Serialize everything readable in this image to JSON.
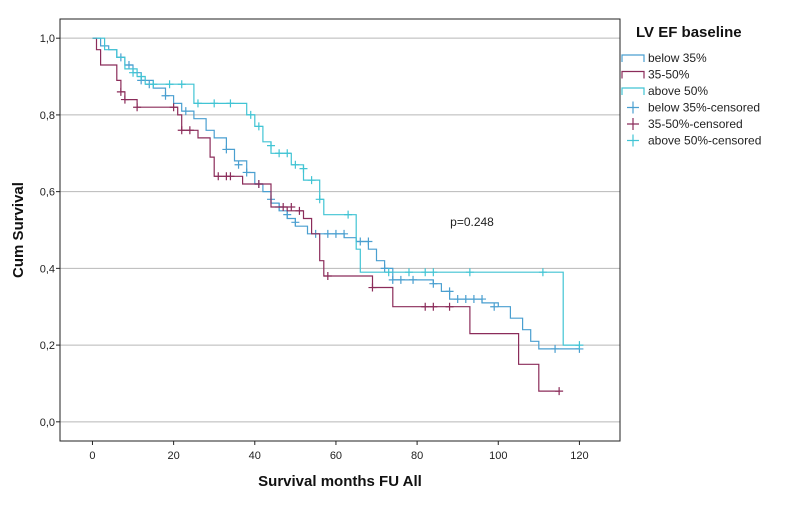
{
  "chart_data": {
    "type": "line",
    "xlabel": "Survival months FU All",
    "ylabel": "Cum Survival",
    "xlim": [
      -8,
      130
    ],
    "ylim": [
      -0.05,
      1.05
    ],
    "x_ticks": [
      0,
      20,
      40,
      60,
      80,
      100,
      120
    ],
    "y_ticks": [
      0.0,
      0.2,
      0.4,
      0.6,
      0.8,
      1.0
    ],
    "y_tick_labels": [
      "0,0",
      "0,2",
      "0,4",
      "0,6",
      "0,8",
      "1,0"
    ],
    "grid": "horizontal",
    "legend_title": "LV EF baseline",
    "legend_position": "right",
    "legend": [
      {
        "label": "below 35%",
        "color": "#4a9fd0",
        "marker": "line"
      },
      {
        "label": "35-50%",
        "color": "#8b2c5a",
        "marker": "line"
      },
      {
        "label": "above 50%",
        "color": "#41c4d4",
        "marker": "line"
      },
      {
        "label": "below 35%-censored",
        "color": "#4a9fd0",
        "marker": "plus"
      },
      {
        "label": "35-50%-censored",
        "color": "#8b2c5a",
        "marker": "plus"
      },
      {
        "label": "above 50%-censored",
        "color": "#41c4d4",
        "marker": "plus"
      }
    ],
    "annotation": "p=0.248",
    "series": [
      {
        "name": "below 35%",
        "color": "#4a9fd0",
        "steps": [
          [
            0,
            1.0
          ],
          [
            2,
            0.98
          ],
          [
            4,
            0.97
          ],
          [
            6,
            0.95
          ],
          [
            8,
            0.93
          ],
          [
            10,
            0.91
          ],
          [
            12,
            0.89
          ],
          [
            15,
            0.87
          ],
          [
            18,
            0.85
          ],
          [
            20,
            0.83
          ],
          [
            22,
            0.81
          ],
          [
            25,
            0.79
          ],
          [
            28,
            0.76
          ],
          [
            30,
            0.74
          ],
          [
            33,
            0.71
          ],
          [
            35,
            0.68
          ],
          [
            38,
            0.65
          ],
          [
            40,
            0.62
          ],
          [
            42,
            0.6
          ],
          [
            44,
            0.57
          ],
          [
            46,
            0.55
          ],
          [
            48,
            0.53
          ],
          [
            50,
            0.51
          ],
          [
            53,
            0.49
          ],
          [
            62,
            0.48
          ],
          [
            65,
            0.47
          ],
          [
            68,
            0.45
          ],
          [
            70,
            0.42
          ],
          [
            72,
            0.4
          ],
          [
            74,
            0.37
          ],
          [
            84,
            0.36
          ],
          [
            86,
            0.34
          ],
          [
            88,
            0.32
          ],
          [
            96,
            0.31
          ],
          [
            100,
            0.3
          ],
          [
            103,
            0.27
          ],
          [
            106,
            0.24
          ],
          [
            108,
            0.21
          ],
          [
            110,
            0.19
          ],
          [
            120,
            0.19
          ]
        ],
        "censored": [
          [
            7,
            0.95
          ],
          [
            9,
            0.93
          ],
          [
            12,
            0.89
          ],
          [
            14,
            0.88
          ],
          [
            18,
            0.85
          ],
          [
            23,
            0.81
          ],
          [
            33,
            0.71
          ],
          [
            36,
            0.67
          ],
          [
            38,
            0.65
          ],
          [
            41,
            0.62
          ],
          [
            44,
            0.58
          ],
          [
            46,
            0.56
          ],
          [
            48,
            0.54
          ],
          [
            50,
            0.52
          ],
          [
            55,
            0.49
          ],
          [
            58,
            0.49
          ],
          [
            60,
            0.49
          ],
          [
            62,
            0.49
          ],
          [
            66,
            0.47
          ],
          [
            68,
            0.47
          ],
          [
            72,
            0.4
          ],
          [
            74,
            0.37
          ],
          [
            76,
            0.37
          ],
          [
            79,
            0.37
          ],
          [
            84,
            0.36
          ],
          [
            88,
            0.34
          ],
          [
            90,
            0.32
          ],
          [
            92,
            0.32
          ],
          [
            94,
            0.32
          ],
          [
            96,
            0.32
          ],
          [
            99,
            0.3
          ],
          [
            114,
            0.19
          ],
          [
            120,
            0.19
          ]
        ]
      },
      {
        "name": "35-50%",
        "color": "#8b2c5a",
        "steps": [
          [
            0,
            1.0
          ],
          [
            1,
            0.97
          ],
          [
            2,
            0.93
          ],
          [
            6,
            0.89
          ],
          [
            7,
            0.86
          ],
          [
            8,
            0.84
          ],
          [
            11,
            0.82
          ],
          [
            21,
            0.8
          ],
          [
            22,
            0.76
          ],
          [
            26,
            0.74
          ],
          [
            29,
            0.69
          ],
          [
            30,
            0.64
          ],
          [
            37,
            0.62
          ],
          [
            44,
            0.56
          ],
          [
            48,
            0.55
          ],
          [
            52,
            0.53
          ],
          [
            54,
            0.49
          ],
          [
            56,
            0.42
          ],
          [
            57,
            0.38
          ],
          [
            69,
            0.35
          ],
          [
            74,
            0.3
          ],
          [
            93,
            0.23
          ],
          [
            105,
            0.15
          ],
          [
            110,
            0.08
          ],
          [
            115,
            0.08
          ]
        ],
        "censored": [
          [
            7,
            0.86
          ],
          [
            8,
            0.84
          ],
          [
            11,
            0.82
          ],
          [
            20,
            0.82
          ],
          [
            22,
            0.76
          ],
          [
            24,
            0.76
          ],
          [
            31,
            0.64
          ],
          [
            33,
            0.64
          ],
          [
            34,
            0.64
          ],
          [
            41,
            0.62
          ],
          [
            47,
            0.56
          ],
          [
            49,
            0.56
          ],
          [
            51,
            0.55
          ],
          [
            58,
            0.38
          ],
          [
            69,
            0.35
          ],
          [
            82,
            0.3
          ],
          [
            84,
            0.3
          ],
          [
            88,
            0.3
          ],
          [
            115,
            0.08
          ]
        ]
      },
      {
        "name": "above 50%",
        "color": "#41c4d4",
        "steps": [
          [
            0,
            1.0
          ],
          [
            3,
            0.97
          ],
          [
            6,
            0.95
          ],
          [
            8,
            0.92
          ],
          [
            11,
            0.9
          ],
          [
            13,
            0.88
          ],
          [
            25,
            0.83
          ],
          [
            38,
            0.8
          ],
          [
            40,
            0.77
          ],
          [
            42,
            0.73
          ],
          [
            44,
            0.7
          ],
          [
            49,
            0.67
          ],
          [
            52,
            0.63
          ],
          [
            56,
            0.58
          ],
          [
            57,
            0.54
          ],
          [
            65,
            0.45
          ],
          [
            66,
            0.39
          ],
          [
            115,
            0.39
          ],
          [
            116,
            0.2
          ],
          [
            120,
            0.2
          ]
        ],
        "censored": [
          [
            10,
            0.91
          ],
          [
            12,
            0.9
          ],
          [
            15,
            0.88
          ],
          [
            19,
            0.88
          ],
          [
            22,
            0.88
          ],
          [
            26,
            0.83
          ],
          [
            30,
            0.83
          ],
          [
            34,
            0.83
          ],
          [
            39,
            0.8
          ],
          [
            41,
            0.77
          ],
          [
            44,
            0.72
          ],
          [
            46,
            0.7
          ],
          [
            48,
            0.7
          ],
          [
            50,
            0.67
          ],
          [
            52,
            0.66
          ],
          [
            54,
            0.63
          ],
          [
            56,
            0.58
          ],
          [
            63,
            0.54
          ],
          [
            73,
            0.39
          ],
          [
            78,
            0.39
          ],
          [
            82,
            0.39
          ],
          [
            84,
            0.39
          ],
          [
            93,
            0.39
          ],
          [
            111,
            0.39
          ],
          [
            120,
            0.2
          ]
        ]
      }
    ]
  }
}
